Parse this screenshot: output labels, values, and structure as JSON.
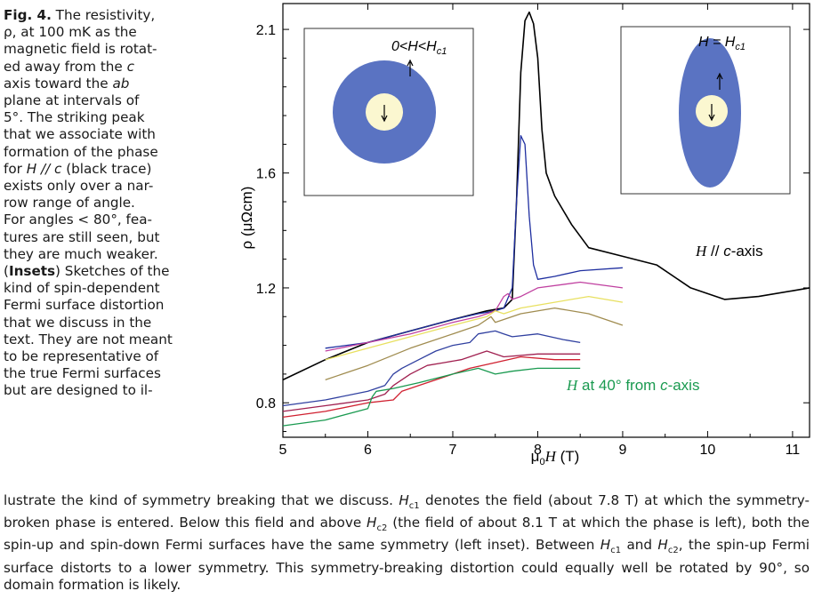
{
  "caption": {
    "side_lines": [
      [
        "b",
        "Fig. 4."
      ],
      [
        "t",
        " The resistivity,"
      ],
      [
        "br"
      ],
      [
        "t",
        "ρ, at 100 mK as the"
      ],
      [
        "br"
      ],
      [
        "t",
        "magnetic field is rotat-"
      ],
      [
        "br"
      ],
      [
        "t",
        "ed away from the "
      ],
      [
        "i",
        "c"
      ],
      [
        "br"
      ],
      [
        "t",
        "axis toward the "
      ],
      [
        "i",
        "ab"
      ],
      [
        "br"
      ],
      [
        "t",
        "plane at intervals of"
      ],
      [
        "br"
      ],
      [
        "t",
        "5°. The striking peak"
      ],
      [
        "br"
      ],
      [
        "t",
        "that we associate with"
      ],
      [
        "br"
      ],
      [
        "t",
        "formation of the phase"
      ],
      [
        "br"
      ],
      [
        "t",
        "for "
      ],
      [
        "i",
        "H // c"
      ],
      [
        "t",
        " (black trace)"
      ],
      [
        "br"
      ],
      [
        "t",
        "exists only over a nar-"
      ],
      [
        "br"
      ],
      [
        "t",
        "row range of angle."
      ],
      [
        "br"
      ],
      [
        "t",
        "For angles < 80°, fea-"
      ],
      [
        "br"
      ],
      [
        "t",
        "tures are still seen, but"
      ],
      [
        "br"
      ],
      [
        "t",
        "they are much weaker."
      ],
      [
        "br"
      ],
      [
        "t",
        "("
      ],
      [
        "b",
        "Insets"
      ],
      [
        "t",
        ") Sketches of the"
      ],
      [
        "br"
      ],
      [
        "t",
        "kind of spin-dependent"
      ],
      [
        "br"
      ],
      [
        "t",
        "Fermi surface distortion"
      ],
      [
        "br"
      ],
      [
        "t",
        "that we discuss in the"
      ],
      [
        "br"
      ],
      [
        "t",
        "text. They are not meant"
      ],
      [
        "br"
      ],
      [
        "t",
        "to be representative of"
      ],
      [
        "br"
      ],
      [
        "t",
        "the true Fermi surfaces"
      ],
      [
        "br"
      ],
      [
        "t",
        "but are designed to il-"
      ]
    ],
    "bottom_parts": [
      [
        "t",
        "lustrate the kind of symmetry breaking that we discuss. "
      ],
      [
        "i",
        "H"
      ],
      [
        "sub",
        "c1"
      ],
      [
        "t",
        " denotes the field (about 7.8 T) at which the symmetry-broken phase is entered. Below this field and above "
      ],
      [
        "i",
        "H"
      ],
      [
        "sub",
        "c2"
      ],
      [
        "t",
        " (the field of about 8.1 T at which the phase is left), both the spin-up and spin-down Fermi surfaces have the same symmetry (left inset). Between "
      ],
      [
        "i",
        "H"
      ],
      [
        "sub",
        "c1"
      ],
      [
        "t",
        " and "
      ],
      [
        "i",
        "H"
      ],
      [
        "sub",
        "c2"
      ],
      [
        "t",
        ", the spin-up Fermi surface distorts to a lower symmetry. This symmetry-breaking distortion could equally well be rotated by 90°, so domain formation is likely."
      ]
    ]
  },
  "figure": {
    "inset_left_label": "0<H<H",
    "inset_left_sub": "c1",
    "inset_right_label": "H = H",
    "inset_right_sub": "c1",
    "black_label": "H // c-axis",
    "green_label": "H at 40° from c-axis"
  },
  "chart_data": {
    "type": "line",
    "xlabel": "μ0H (T)",
    "ylabel": "ρ (μΩcm)",
    "xlim": [
      5,
      11.2
    ],
    "ylim": [
      0.68,
      2.19
    ],
    "xticks": [
      5,
      6,
      7,
      8,
      9,
      10,
      11
    ],
    "yticks": [
      0.8,
      1.2,
      1.6,
      2.1
    ],
    "ytick_labels": [
      "0.8",
      "1.2",
      "1.6",
      "2.1"
    ],
    "grid": false,
    "series": [
      {
        "color": "#000000",
        "x": [
          5.0,
          5.5,
          6.0,
          6.5,
          7.0,
          7.4,
          7.6,
          7.7,
          7.75,
          7.8,
          7.85,
          7.9,
          7.95,
          8.0,
          8.05,
          8.1,
          8.2,
          8.4,
          8.6,
          9.0,
          9.4,
          9.8,
          10.2,
          10.6,
          11.0,
          11.2
        ],
        "y": [
          0.88,
          0.95,
          1.01,
          1.05,
          1.09,
          1.12,
          1.13,
          1.16,
          1.5,
          1.95,
          2.13,
          2.16,
          2.12,
          2.0,
          1.75,
          1.6,
          1.52,
          1.42,
          1.34,
          1.31,
          1.28,
          1.2,
          1.16,
          1.17,
          1.19,
          1.2
        ]
      },
      {
        "color": "#1f2fa0",
        "x": [
          5.5,
          6.0,
          6.5,
          7.0,
          7.3,
          7.5,
          7.6,
          7.7,
          7.75,
          7.8,
          7.85,
          7.9,
          7.95,
          8.0,
          8.2,
          8.5,
          9.0
        ],
        "y": [
          0.99,
          1.01,
          1.05,
          1.09,
          1.11,
          1.12,
          1.13,
          1.2,
          1.5,
          1.73,
          1.7,
          1.45,
          1.28,
          1.23,
          1.24,
          1.26,
          1.27
        ]
      },
      {
        "color": "#c040a0",
        "x": [
          5.5,
          6.0,
          6.5,
          7.0,
          7.3,
          7.5,
          7.6,
          7.65,
          7.7,
          7.8,
          8.0,
          8.5,
          9.0
        ],
        "y": [
          0.98,
          1.01,
          1.04,
          1.08,
          1.1,
          1.12,
          1.17,
          1.18,
          1.16,
          1.17,
          1.2,
          1.22,
          1.2
        ]
      },
      {
        "color": "#e8e060",
        "x": [
          5.5,
          6.0,
          6.5,
          7.0,
          7.4,
          7.5,
          7.6,
          7.8,
          8.2,
          8.6,
          9.0
        ],
        "y": [
          0.95,
          0.99,
          1.03,
          1.07,
          1.1,
          1.12,
          1.11,
          1.13,
          1.15,
          1.17,
          1.15
        ]
      },
      {
        "color": "#a08c50",
        "x": [
          5.5,
          6.0,
          6.5,
          7.0,
          7.3,
          7.45,
          7.5,
          7.6,
          7.8,
          8.2,
          8.6,
          9.0
        ],
        "y": [
          0.88,
          0.93,
          0.99,
          1.04,
          1.07,
          1.1,
          1.08,
          1.09,
          1.11,
          1.13,
          1.11,
          1.07
        ]
      },
      {
        "color": "#3040a0",
        "x": [
          5.0,
          5.5,
          6.0,
          6.2,
          6.3,
          6.4,
          6.6,
          6.8,
          7.0,
          7.2,
          7.3,
          7.5,
          7.6,
          7.7,
          8.0,
          8.3,
          8.5
        ],
        "y": [
          0.79,
          0.81,
          0.84,
          0.86,
          0.9,
          0.92,
          0.95,
          0.98,
          1.0,
          1.01,
          1.04,
          1.05,
          1.04,
          1.03,
          1.04,
          1.02,
          1.01
        ]
      },
      {
        "color": "#a02050",
        "x": [
          5.0,
          5.5,
          6.0,
          6.2,
          6.3,
          6.5,
          6.7,
          6.9,
          7.1,
          7.3,
          7.4,
          7.6,
          8.0,
          8.5
        ],
        "y": [
          0.77,
          0.79,
          0.81,
          0.83,
          0.86,
          0.9,
          0.93,
          0.94,
          0.95,
          0.97,
          0.98,
          0.96,
          0.97,
          0.97
        ]
      },
      {
        "color": "#d02030",
        "x": [
          5.0,
          5.5,
          6.0,
          6.3,
          6.4,
          6.6,
          6.8,
          7.0,
          7.2,
          7.5,
          7.8,
          8.2,
          8.5
        ],
        "y": [
          0.75,
          0.77,
          0.8,
          0.81,
          0.84,
          0.86,
          0.88,
          0.9,
          0.92,
          0.94,
          0.96,
          0.95,
          0.95
        ]
      },
      {
        "color": "#1a9a50",
        "x": [
          5.0,
          5.5,
          6.0,
          6.05,
          6.1,
          6.3,
          6.6,
          7.0,
          7.3,
          7.5,
          7.7,
          8.0,
          8.5
        ],
        "y": [
          0.72,
          0.74,
          0.78,
          0.82,
          0.84,
          0.85,
          0.87,
          0.9,
          0.92,
          0.9,
          0.91,
          0.92,
          0.92
        ]
      }
    ]
  }
}
